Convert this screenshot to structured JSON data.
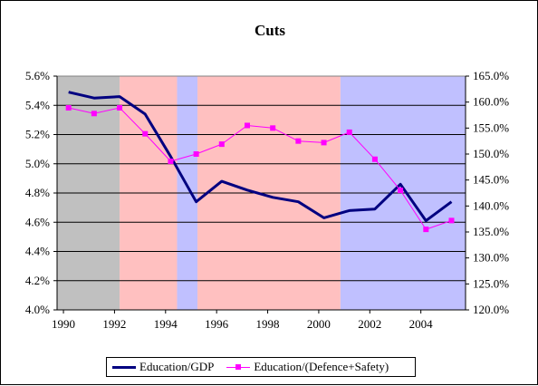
{
  "chart_data": {
    "type": "line",
    "title": "Cuts",
    "xlabel": "",
    "ylabel": "",
    "xlim": [
      1989.75,
      2005.75
    ],
    "ylim": [
      4.0,
      5.6
    ],
    "y2lim": [
      120.0,
      165.0
    ],
    "x_ticks": [
      "1990",
      "1992",
      "1994",
      "1996",
      "1998",
      "2000",
      "2002",
      "2004"
    ],
    "x_tick_values": [
      1990,
      1992,
      1994,
      1996,
      1998,
      2000,
      2002,
      2004
    ],
    "y_ticks": [
      "4.0%",
      "4.2%",
      "4.4%",
      "4.6%",
      "4.8%",
      "5.0%",
      "5.2%",
      "5.4%",
      "5.6%"
    ],
    "y_tick_values": [
      4.0,
      4.2,
      4.4,
      4.6,
      4.8,
      5.0,
      5.2,
      5.4,
      5.6
    ],
    "y2_ticks": [
      "120.0%",
      "125.0%",
      "130.0%",
      "135.0%",
      "140.0%",
      "145.0%",
      "150.0%",
      "155.0%",
      "160.0%",
      "165.0%"
    ],
    "y2_tick_values": [
      120,
      125,
      130,
      135,
      140,
      145,
      150,
      155,
      160,
      165
    ],
    "grid": "horizontal",
    "legend_position": "bottom",
    "plot_background": "#ffffff",
    "background_bands": [
      {
        "x_start": 1989.75,
        "x_end": 1992.2,
        "color": "#c0c0c0"
      },
      {
        "x_start": 1992.2,
        "x_end": 1994.45,
        "color": "#ffc0c0"
      },
      {
        "x_start": 1994.45,
        "x_end": 1995.25,
        "color": "#c0c0ff"
      },
      {
        "x_start": 1995.25,
        "x_end": 2000.85,
        "color": "#ffc0c0"
      },
      {
        "x_start": 2000.85,
        "x_end": 2005.75,
        "color": "#c0c0ff"
      }
    ],
    "series": [
      {
        "name": "Education/GDP",
        "axis": "left",
        "color": "#000080",
        "marker": "none",
        "x": [
          1990.2,
          1991.2,
          1992.2,
          1993.2,
          1994.2,
          1995.2,
          1996.2,
          1997.2,
          1998.2,
          1999.2,
          2000.2,
          2001.2,
          2002.2,
          2003.2,
          2004.2,
          2005.2
        ],
        "values": [
          5.49,
          5.45,
          5.46,
          5.34,
          5.05,
          4.74,
          4.88,
          4.82,
          4.77,
          4.74,
          4.63,
          4.68,
          4.69,
          4.86,
          4.61,
          4.74
        ]
      },
      {
        "name": "Education/(Defence+Safety)",
        "axis": "right",
        "color": "#ff00ff",
        "marker": "square",
        "x": [
          1990.2,
          1991.2,
          1992.2,
          1993.2,
          1994.2,
          1995.2,
          1996.2,
          1997.2,
          1998.2,
          1999.2,
          2000.2,
          2001.2,
          2002.2,
          2003.2,
          2004.2,
          2005.2
        ],
        "values": [
          158.9,
          157.8,
          158.9,
          153.9,
          148.6,
          150.0,
          151.9,
          155.5,
          155.0,
          152.5,
          152.2,
          154.2,
          149.0,
          143.0,
          135.5,
          137.2
        ]
      }
    ]
  }
}
